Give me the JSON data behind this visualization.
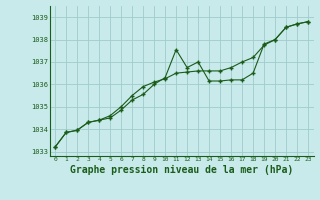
{
  "title": "Graphe pression niveau de la mer (hPa)",
  "bg_color": "#c8eaea",
  "grid_color": "#a0cccc",
  "line_color": "#1a5c1a",
  "x_values": [
    0,
    1,
    2,
    3,
    4,
    5,
    6,
    7,
    8,
    9,
    10,
    11,
    12,
    13,
    14,
    15,
    16,
    17,
    18,
    19,
    20,
    21,
    22,
    23
  ],
  "line1": [
    1033.2,
    1033.85,
    1033.95,
    1034.3,
    1034.4,
    1034.5,
    1034.85,
    1035.3,
    1035.55,
    1036.0,
    1036.3,
    1037.55,
    1036.75,
    1037.0,
    1036.15,
    1036.15,
    1036.2,
    1036.2,
    1036.5,
    1037.8,
    1038.0,
    1038.55,
    1038.7,
    1038.8
  ],
  "line2": [
    1033.2,
    1033.85,
    1033.95,
    1034.3,
    1034.4,
    1034.6,
    1035.0,
    1035.5,
    1035.9,
    1036.1,
    1036.25,
    1036.5,
    1036.55,
    1036.6,
    1036.6,
    1036.6,
    1036.75,
    1037.0,
    1037.2,
    1037.75,
    1038.0,
    1038.55,
    1038.7,
    1038.8
  ],
  "ylim": [
    1032.8,
    1039.5
  ],
  "yticks": [
    1033,
    1034,
    1035,
    1036,
    1037,
    1038,
    1039
  ],
  "xticks": [
    0,
    1,
    2,
    3,
    4,
    5,
    6,
    7,
    8,
    9,
    10,
    11,
    12,
    13,
    14,
    15,
    16,
    17,
    18,
    19,
    20,
    21,
    22,
    23
  ]
}
